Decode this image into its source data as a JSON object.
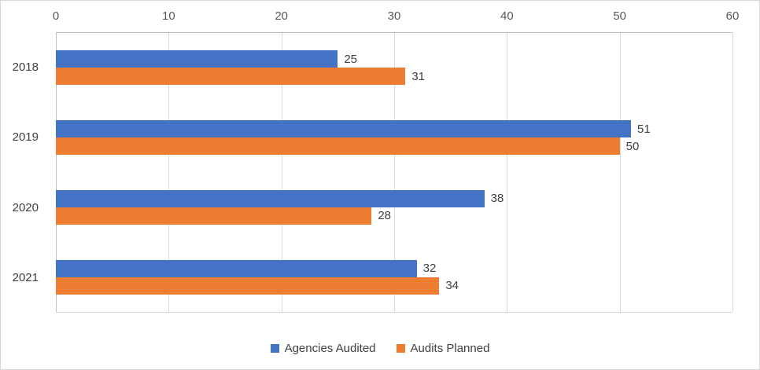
{
  "chart_data": {
    "type": "bar",
    "orientation": "horizontal",
    "title": "",
    "categories": [
      "2018",
      "2019",
      "2020",
      "2021"
    ],
    "series": [
      {
        "name": "Agencies Audited",
        "color": "#4472C4",
        "values": [
          25,
          51,
          38,
          32
        ]
      },
      {
        "name": "Audits Planned",
        "color": "#ED7D31",
        "values": [
          31,
          50,
          28,
          34
        ]
      }
    ],
    "xlim": [
      0,
      60
    ],
    "x_ticks": [
      0,
      10,
      20,
      30,
      40,
      50,
      60
    ],
    "axis_position": "top",
    "grid": true,
    "data_labels": true,
    "legend_position": "bottom"
  },
  "colors": {
    "tick_label": "#595959",
    "text": "#404040",
    "gridline": "#D9D9D9",
    "axis_line": "#BFBFBF"
  }
}
